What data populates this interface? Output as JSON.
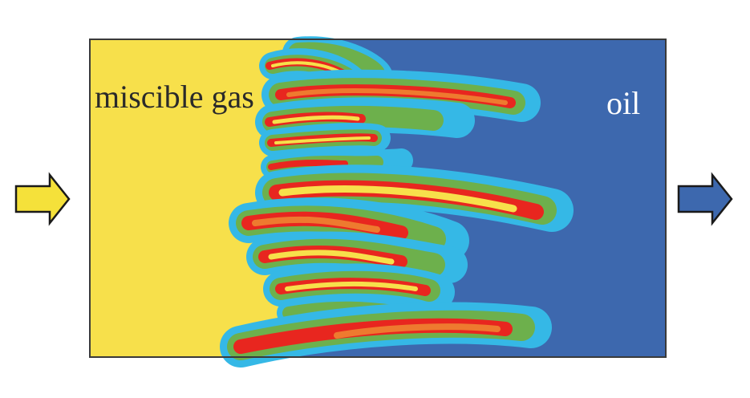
{
  "labels": {
    "gas": "miscible gas",
    "oil": "oil"
  },
  "colors": {
    "gas": "#f7e04b",
    "oil": "#3d68ae",
    "transition_cyan": "#35b8e6",
    "transition_green": "#6db04c",
    "front_red": "#e8261f",
    "front_orange": "#ee7a2f",
    "label_text": "#2a2a2a",
    "label_oil_text": "#ffffff",
    "inlet_arrow": "#f5e13a",
    "outlet_arrow": "#3d68ae"
  },
  "icons": {
    "inlet": "arrow-right-icon",
    "outlet": "arrow-right-icon"
  }
}
